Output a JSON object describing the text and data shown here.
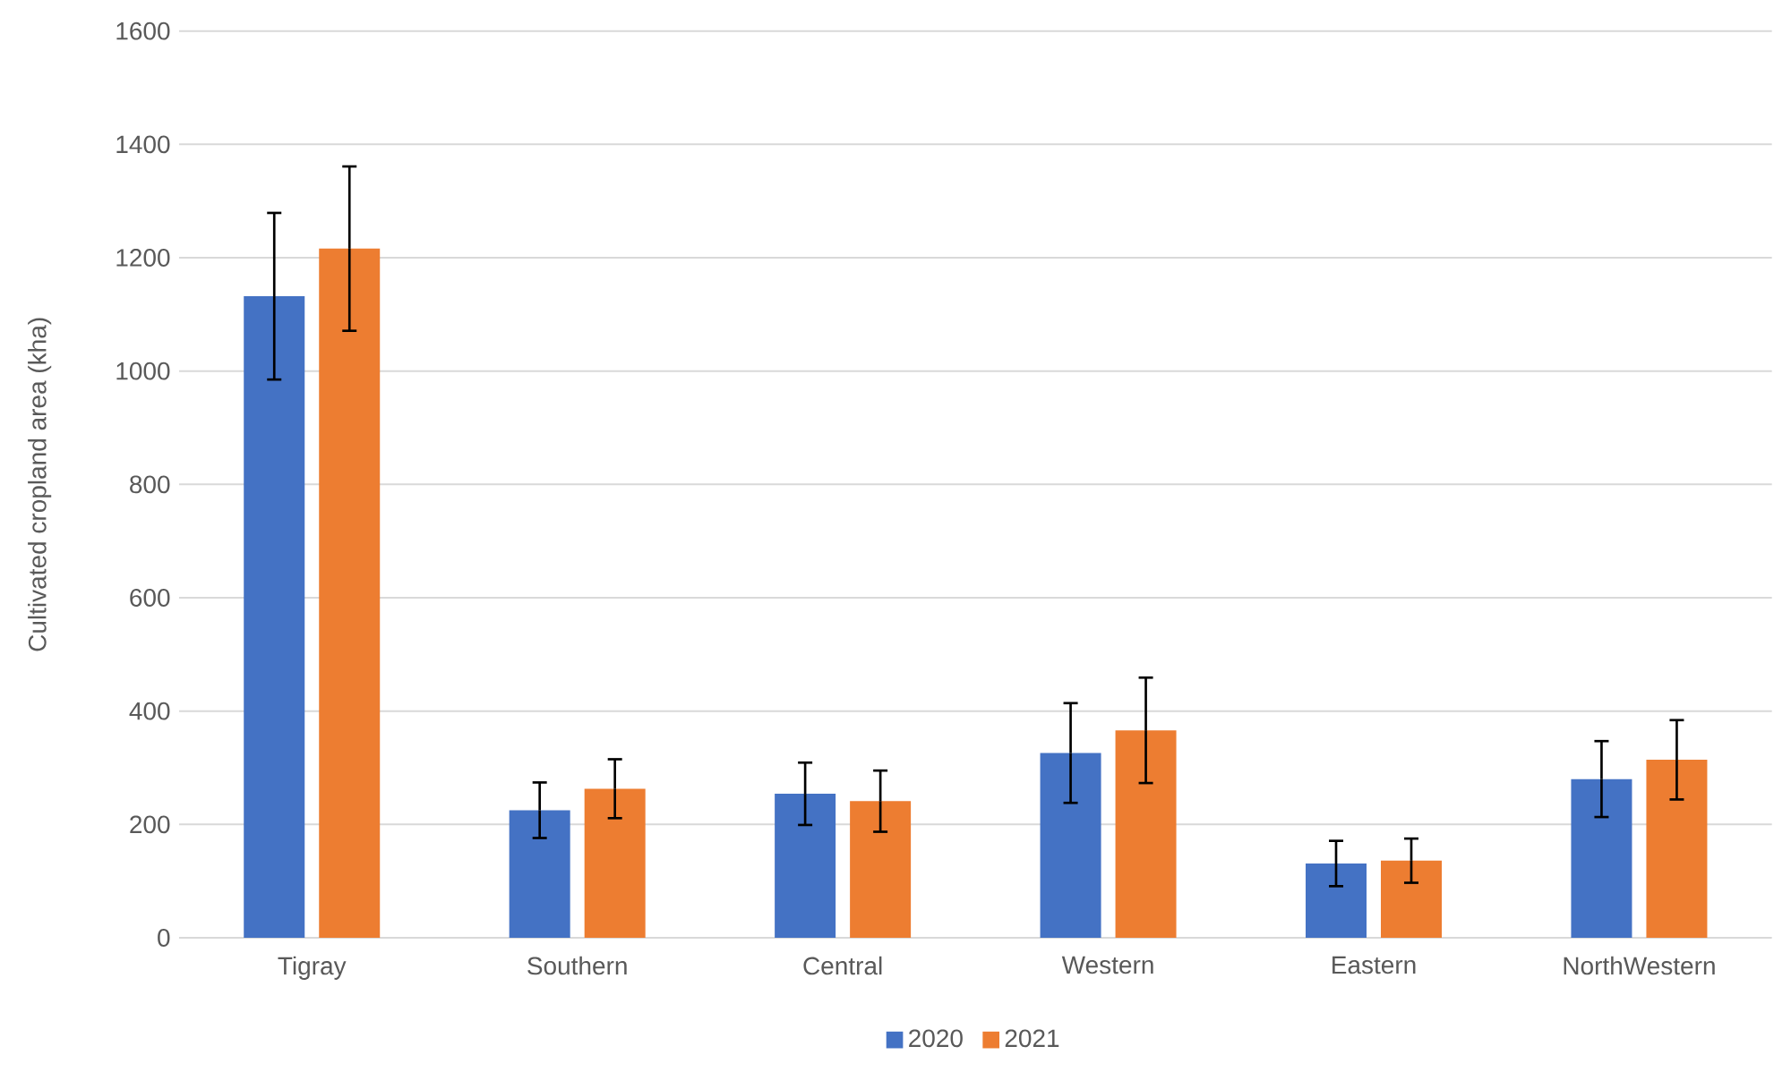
{
  "chart_data": {
    "type": "bar",
    "ylabel": "Cultivated cropland area (kha)",
    "categories": [
      "Tigray",
      "Southern",
      "Central",
      "Western",
      "Eastern",
      "NorthWestern"
    ],
    "series": [
      {
        "name": "2020",
        "color": "#4472c4",
        "values": [
          1132,
          225,
          254,
          326,
          131,
          280
        ],
        "errors": [
          147,
          49,
          55,
          88,
          40,
          67
        ]
      },
      {
        "name": "2021",
        "color": "#ed7d31",
        "values": [
          1216,
          263,
          241,
          366,
          136,
          314
        ],
        "errors": [
          145,
          52,
          54,
          93,
          39,
          70
        ]
      }
    ],
    "ylim": [
      0,
      1600
    ],
    "yticks": [
      0,
      200,
      400,
      600,
      800,
      1000,
      1200,
      1400,
      1600
    ],
    "grid": "y",
    "legend": "bottom"
  }
}
